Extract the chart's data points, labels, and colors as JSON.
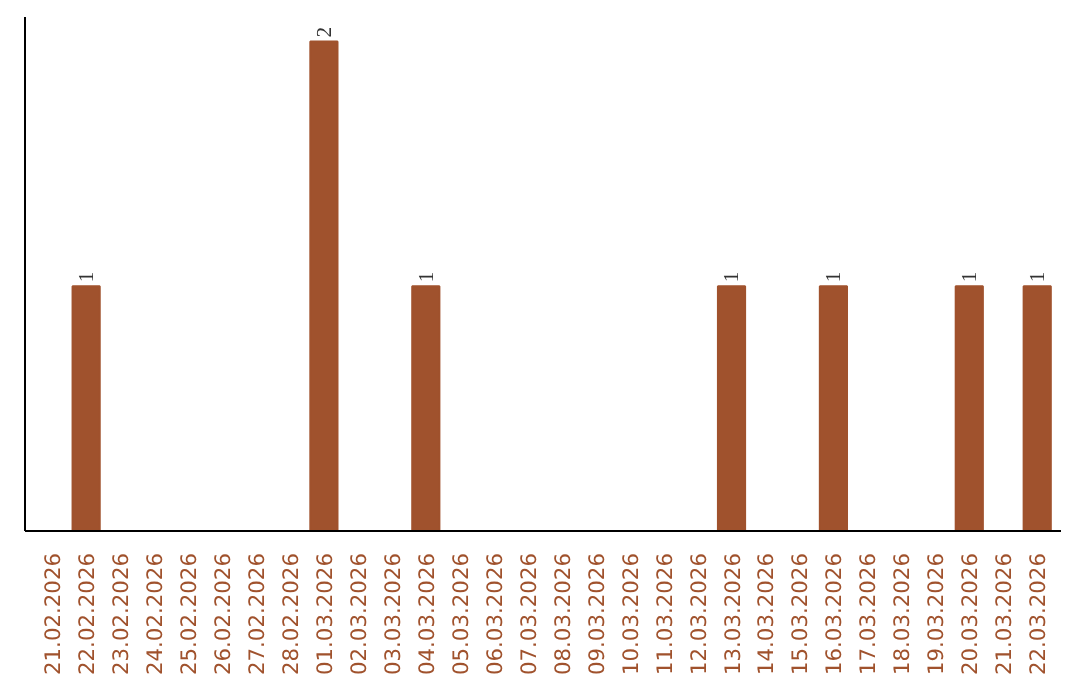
{
  "chart_data": {
    "type": "bar",
    "categories": [
      "21.02.2026",
      "22.02.2026",
      "23.02.2026",
      "24.02.2026",
      "25.02.2026",
      "26.02.2026",
      "27.02.2026",
      "28.02.2026",
      "01.03.2026",
      "02.03.2026",
      "03.03.2026",
      "04.03.2026",
      "05.03.2026",
      "06.03.2026",
      "07.03.2026",
      "08.03.2026",
      "09.03.2026",
      "10.03.2026",
      "11.03.2026",
      "12.03.2026",
      "13.03.2026",
      "14.03.2026",
      "15.03.2026",
      "16.03.2026",
      "17.03.2026",
      "18.03.2026",
      "19.03.2026",
      "20.03.2026",
      "21.03.2026",
      "22.03.2026"
    ],
    "values": [
      0,
      1,
      0,
      0,
      0,
      0,
      0,
      0,
      2,
      0,
      0,
      1,
      0,
      0,
      0,
      0,
      0,
      0,
      0,
      0,
      1,
      0,
      0,
      1,
      0,
      0,
      0,
      1,
      0,
      1
    ],
    "color": "#a0522d",
    "value_labels": [
      null,
      "1",
      null,
      null,
      null,
      null,
      null,
      null,
      "2",
      null,
      null,
      "1",
      null,
      null,
      null,
      null,
      null,
      null,
      null,
      null,
      "1",
      null,
      null,
      "1",
      null,
      null,
      null,
      "1",
      null,
      "1"
    ],
    "grid": false,
    "tick_labels": "x"
  }
}
